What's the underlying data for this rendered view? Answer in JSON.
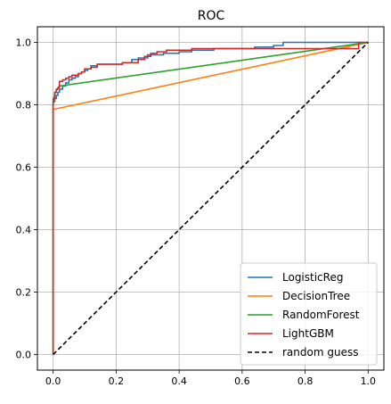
{
  "chart_data": {
    "type": "line",
    "title": "ROC",
    "xlabel": "",
    "ylabel": "",
    "xlim": [
      -0.05,
      1.05
    ],
    "ylim": [
      -0.05,
      1.05
    ],
    "xticks": [
      0.0,
      0.2,
      0.4,
      0.6,
      0.8,
      1.0
    ],
    "yticks": [
      0.0,
      0.2,
      0.4,
      0.6,
      0.8,
      1.0
    ],
    "xtick_labels": [
      "0.0",
      "0.2",
      "0.4",
      "0.6",
      "0.8",
      "1.0"
    ],
    "ytick_labels": [
      "0.0",
      "0.2",
      "0.4",
      "0.6",
      "0.8",
      "1.0"
    ],
    "grid": true,
    "legend_position": "bottom-right",
    "series": [
      {
        "name": "LogisticReg",
        "color": "#1f77b4",
        "style": "solid",
        "step": true,
        "x": [
          0.0,
          0.0,
          0.005,
          0.005,
          0.01,
          0.01,
          0.015,
          0.015,
          0.02,
          0.02,
          0.03,
          0.03,
          0.04,
          0.04,
          0.05,
          0.05,
          0.06,
          0.06,
          0.07,
          0.07,
          0.08,
          0.08,
          0.09,
          0.09,
          0.1,
          0.1,
          0.11,
          0.11,
          0.12,
          0.12,
          0.14,
          0.14,
          0.22,
          0.22,
          0.25,
          0.25,
          0.27,
          0.27,
          0.3,
          0.3,
          0.35,
          0.35,
          0.4,
          0.4,
          0.44,
          0.44,
          0.51,
          0.51,
          0.64,
          0.64,
          0.7,
          0.7,
          0.73,
          0.73,
          1.0
        ],
        "y": [
          0.0,
          0.81,
          0.81,
          0.82,
          0.82,
          0.83,
          0.83,
          0.84,
          0.84,
          0.85,
          0.85,
          0.86,
          0.86,
          0.87,
          0.87,
          0.88,
          0.88,
          0.885,
          0.885,
          0.89,
          0.89,
          0.9,
          0.9,
          0.905,
          0.905,
          0.91,
          0.91,
          0.915,
          0.915,
          0.925,
          0.925,
          0.93,
          0.93,
          0.935,
          0.935,
          0.945,
          0.945,
          0.95,
          0.95,
          0.96,
          0.96,
          0.965,
          0.965,
          0.97,
          0.97,
          0.975,
          0.975,
          0.98,
          0.98,
          0.985,
          0.985,
          0.99,
          0.99,
          1.0,
          1.0
        ]
      },
      {
        "name": "DecisionTree",
        "color": "#ff7f0e",
        "style": "solid",
        "step": false,
        "x": [
          0.0,
          0.0,
          1.0
        ],
        "y": [
          0.0,
          0.785,
          1.0
        ]
      },
      {
        "name": "RandomForest",
        "color": "#2ca02c",
        "style": "solid",
        "step": false,
        "x": [
          0.0,
          0.0,
          0.005,
          0.01,
          0.02,
          1.0
        ],
        "y": [
          0.0,
          0.8,
          0.835,
          0.845,
          0.86,
          1.0
        ]
      },
      {
        "name": "LightGBM",
        "color": "#d62728",
        "style": "solid",
        "step": true,
        "x": [
          0.0,
          0.0,
          0.005,
          0.005,
          0.01,
          0.01,
          0.015,
          0.015,
          0.02,
          0.02,
          0.03,
          0.03,
          0.04,
          0.04,
          0.05,
          0.05,
          0.06,
          0.06,
          0.08,
          0.08,
          0.09,
          0.09,
          0.1,
          0.1,
          0.12,
          0.12,
          0.14,
          0.14,
          0.22,
          0.22,
          0.27,
          0.27,
          0.29,
          0.29,
          0.31,
          0.31,
          0.33,
          0.33,
          0.36,
          0.36,
          0.41,
          0.41,
          0.44,
          0.44,
          0.97,
          0.97,
          1.0
        ],
        "y": [
          0.0,
          0.82,
          0.82,
          0.84,
          0.84,
          0.85,
          0.85,
          0.855,
          0.855,
          0.875,
          0.875,
          0.88,
          0.88,
          0.885,
          0.885,
          0.89,
          0.89,
          0.895,
          0.895,
          0.9,
          0.9,
          0.905,
          0.905,
          0.915,
          0.915,
          0.92,
          0.92,
          0.93,
          0.93,
          0.935,
          0.935,
          0.945,
          0.945,
          0.955,
          0.955,
          0.965,
          0.965,
          0.97,
          0.97,
          0.975,
          0.975,
          0.975,
          0.975,
          0.98,
          0.98,
          1.0,
          1.0
        ]
      },
      {
        "name": "random guess",
        "color": "#000000",
        "style": "dashed",
        "step": false,
        "x": [
          0.0,
          1.0
        ],
        "y": [
          0.0,
          1.0
        ]
      }
    ]
  }
}
